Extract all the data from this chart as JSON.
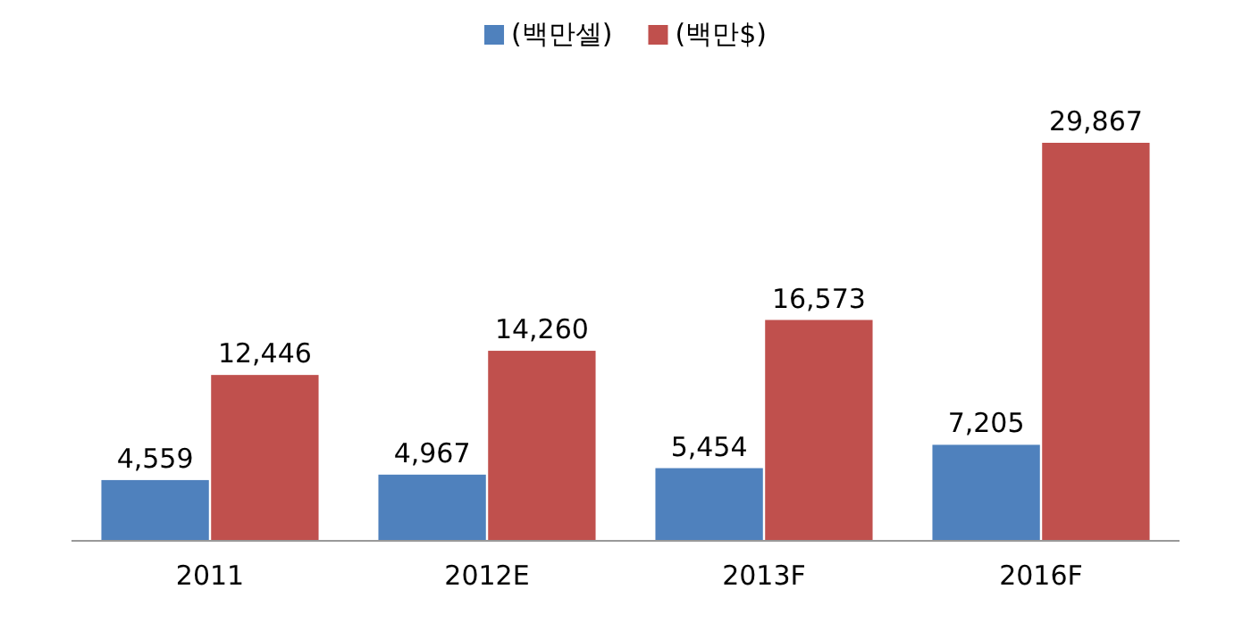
{
  "chart_data": {
    "type": "bar",
    "categories": [
      "2011",
      "2012E",
      "2013F",
      "2016F"
    ],
    "series": [
      {
        "name": "(백만셀)",
        "color": "#4f81bd",
        "values": [
          4559,
          4967,
          5454,
          7205
        ],
        "value_labels": [
          "4,559",
          "4,967",
          "5,454",
          "7,205"
        ]
      },
      {
        "name": "(백만$)",
        "color": "#c0504d",
        "values": [
          12446,
          14260,
          16573,
          29867
        ],
        "value_labels": [
          "12,446",
          "14,260",
          "16,573",
          "29,867"
        ]
      }
    ],
    "legend": "top"
  }
}
